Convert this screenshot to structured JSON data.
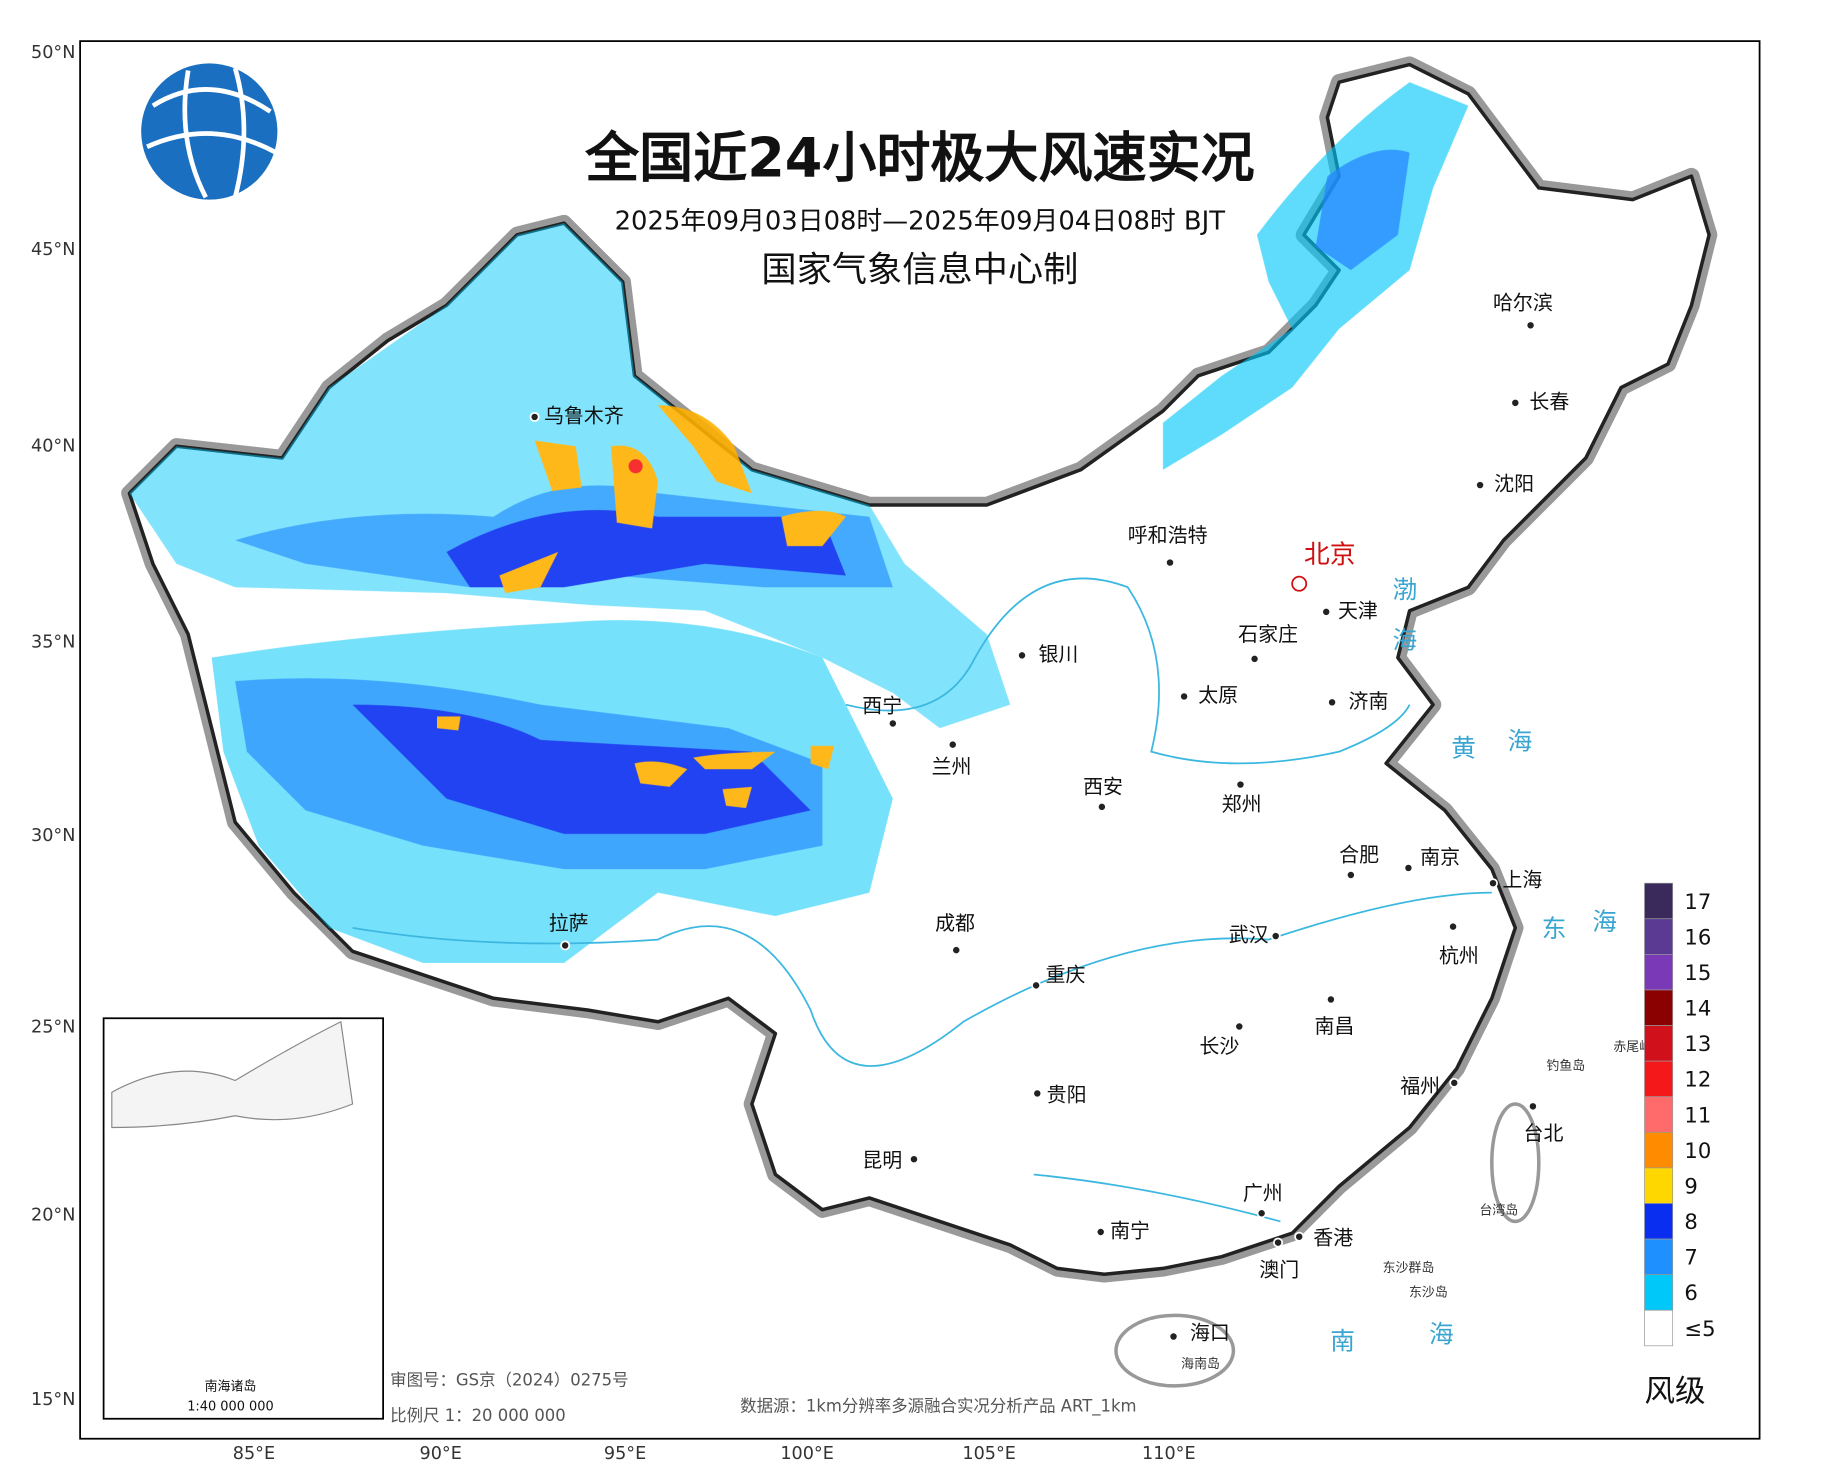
{
  "header": {
    "title": "全国近24小时极大风速实况",
    "subtitle": "2025年09月03日08时—2025年09月04日08时 BJT",
    "producer": "国家气象信息中心制"
  },
  "axes": {
    "lat": [
      "50°N",
      "45°N",
      "40°N",
      "35°N",
      "30°N",
      "25°N",
      "20°N",
      "15°N"
    ],
    "lon": [
      "85°E",
      "90°E",
      "95°E",
      "100°E",
      "105°E",
      "110°E"
    ]
  },
  "cities": [
    {
      "name": "乌鲁木齐"
    },
    {
      "name": "呼和浩特"
    },
    {
      "name": "北京"
    },
    {
      "name": "天津"
    },
    {
      "name": "石家庄"
    },
    {
      "name": "银川"
    },
    {
      "name": "太原"
    },
    {
      "name": "济南"
    },
    {
      "name": "西宁"
    },
    {
      "name": "兰州"
    },
    {
      "name": "西安"
    },
    {
      "name": "郑州"
    },
    {
      "name": "哈尔滨"
    },
    {
      "name": "长春"
    },
    {
      "name": "沈阳"
    },
    {
      "name": "合肥"
    },
    {
      "name": "南京"
    },
    {
      "name": "上海"
    },
    {
      "name": "杭州"
    },
    {
      "name": "武汉"
    },
    {
      "name": "成都"
    },
    {
      "name": "重庆"
    },
    {
      "name": "拉萨"
    },
    {
      "name": "长沙"
    },
    {
      "name": "南昌"
    },
    {
      "name": "福州"
    },
    {
      "name": "贵阳"
    },
    {
      "name": "昆明"
    },
    {
      "name": "台北"
    },
    {
      "name": "广州"
    },
    {
      "name": "南宁"
    },
    {
      "name": "香港"
    },
    {
      "name": "澳门"
    },
    {
      "name": "海口"
    }
  ],
  "seas": [
    "渤",
    "海",
    "黄",
    "海",
    "东",
    "海",
    "南",
    "海"
  ],
  "islands": [
    "钓鱼岛",
    "赤尾屿",
    "台湾岛",
    "东沙群岛",
    "东沙岛",
    "海南岛"
  ],
  "legend": {
    "title": "风级",
    "levels": [
      {
        "label": "17",
        "color": "#3a2a5c"
      },
      {
        "label": "16",
        "color": "#5a3a92"
      },
      {
        "label": "15",
        "color": "#7a3ab8"
      },
      {
        "label": "14",
        "color": "#8b0000"
      },
      {
        "label": "13",
        "color": "#d0101a"
      },
      {
        "label": "12",
        "color": "#f5181a"
      },
      {
        "label": "11",
        "color": "#ff6a6a"
      },
      {
        "label": "10",
        "color": "#ff8c00"
      },
      {
        "label": "9",
        "color": "#ffd700"
      },
      {
        "label": "8",
        "color": "#0a2ef0"
      },
      {
        "label": "7",
        "color": "#1e90ff"
      },
      {
        "label": "6",
        "color": "#00c8f8"
      },
      {
        "label": "≤5",
        "color": "#ffffff"
      }
    ]
  },
  "notes": {
    "review": "审图号：GS京（2024）0275号",
    "scale": "比例尺 1：20 000 000",
    "source": "数据源：1km分辨率多源融合实况分析产品 ART_1km"
  },
  "inset": {
    "title": "南海诸岛",
    "scale": "1:40 000 000"
  }
}
